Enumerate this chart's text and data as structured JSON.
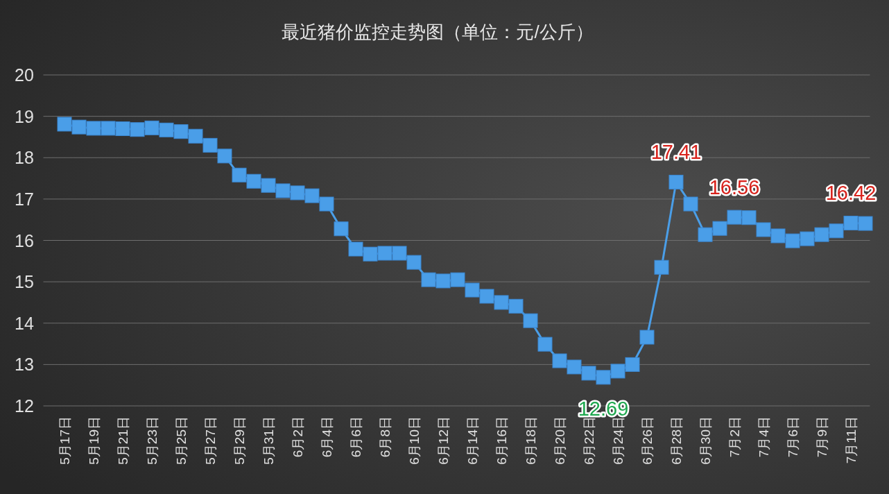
{
  "chart_data": {
    "type": "line",
    "title": "最近猪价监控走势图（单位：元/公斤）",
    "categories": [
      "5月17日",
      null,
      "5月19日",
      null,
      "5月21日",
      null,
      "5月23日",
      null,
      "5月25日",
      null,
      "5月27日",
      null,
      "5月29日",
      null,
      "5月31日",
      null,
      "6月2日",
      null,
      "6月4日",
      null,
      "6月6日",
      null,
      "6月8日",
      null,
      "6月10日",
      null,
      "6月12日",
      null,
      "6月14日",
      null,
      "6月16日",
      null,
      "6月18日",
      null,
      "6月20日",
      null,
      "6月22日",
      null,
      "6月24日",
      null,
      "6月26日",
      null,
      "6月28日",
      null,
      "6月30日",
      null,
      "7月2日",
      null,
      "7月4日",
      null,
      "7月6日",
      null,
      "7月9日",
      null,
      "7月11日",
      null
    ],
    "series": [
      {
        "color": "#4a9ee8",
        "values": [
          18.81,
          18.74,
          18.71,
          18.71,
          18.7,
          18.68,
          18.72,
          18.67,
          18.63,
          18.52,
          18.3,
          18.04,
          17.58,
          17.43,
          17.33,
          17.2,
          17.15,
          17.08,
          16.88,
          16.28,
          15.79,
          15.67,
          15.69,
          15.69,
          15.47,
          15.05,
          15.02,
          15.05,
          14.8,
          14.65,
          14.5,
          14.41,
          14.06,
          13.49,
          13.09,
          12.94,
          12.79,
          12.69,
          12.84,
          13.0,
          13.66,
          15.35,
          17.41,
          16.88,
          16.14,
          16.29,
          16.56,
          16.55,
          16.26,
          16.11,
          15.99,
          16.04,
          16.14,
          16.23,
          16.42,
          16.41
        ],
        "value_labels": [
          null,
          null,
          null,
          null,
          null,
          null,
          null,
          null,
          null,
          null,
          null,
          null,
          null,
          null,
          null,
          null,
          null,
          null,
          null,
          null,
          null,
          null,
          null,
          null,
          null,
          null,
          null,
          null,
          null,
          null,
          null,
          null,
          null,
          null,
          null,
          null,
          null,
          "12.69",
          null,
          null,
          null,
          null,
          "17.41",
          null,
          null,
          null,
          "16.56",
          null,
          null,
          null,
          null,
          null,
          null,
          null,
          "16.42",
          null
        ]
      }
    ],
    "ylim": [
      12,
      20
    ],
    "yticks": [
      12,
      13,
      14,
      15,
      16,
      17,
      18,
      19,
      20
    ],
    "grid": "y",
    "marker": "square",
    "line_style": "solid"
  }
}
